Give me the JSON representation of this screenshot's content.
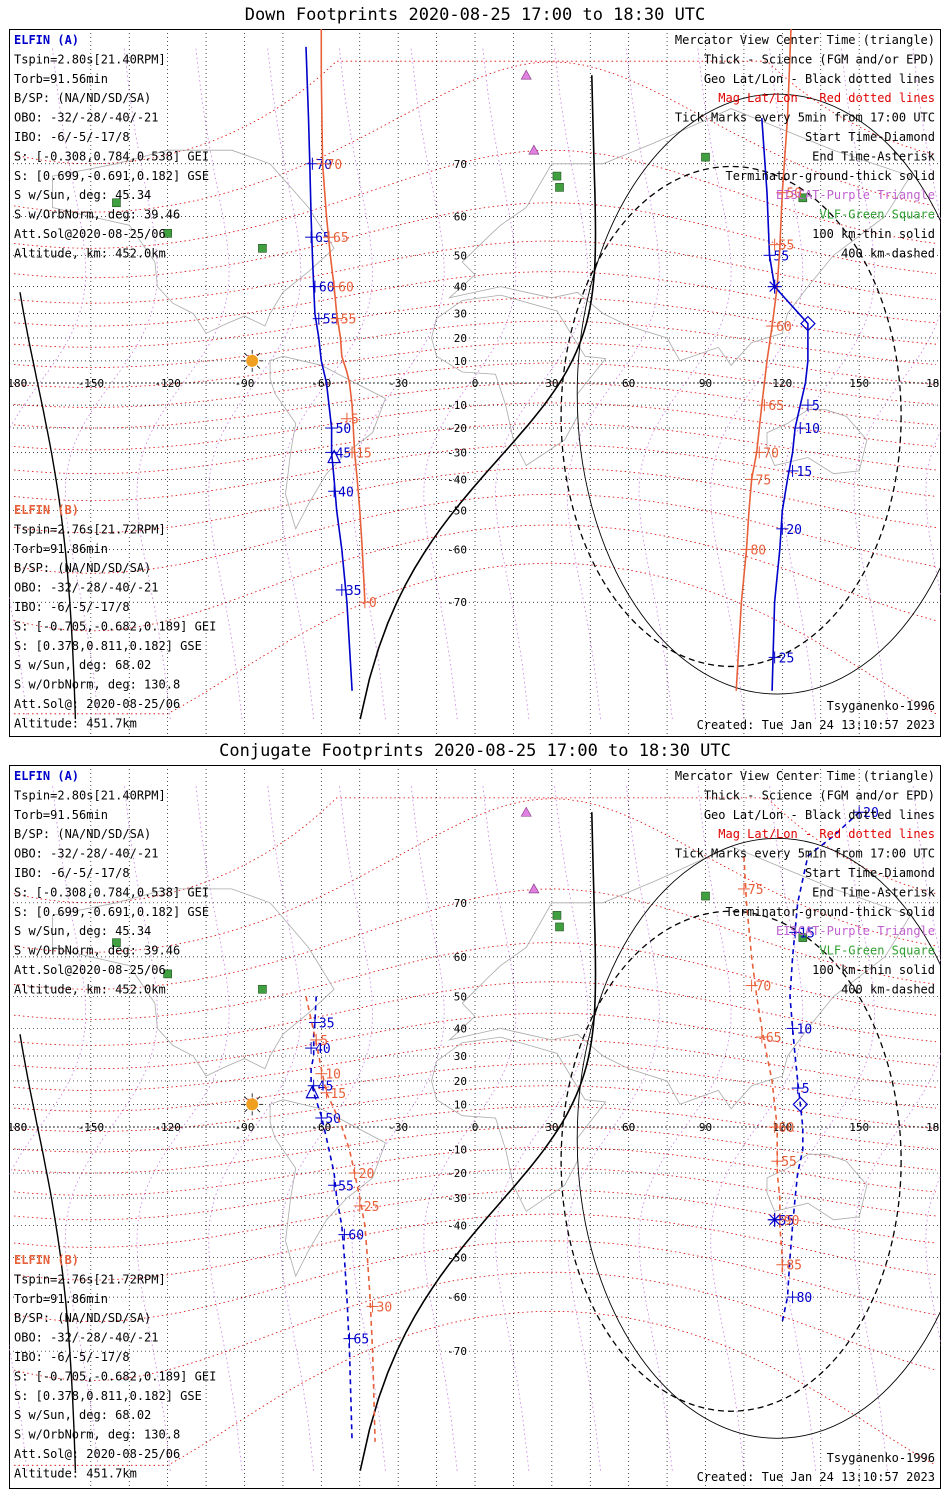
{
  "chart_data": [
    {
      "type": "line",
      "title": "Down Footprints 2020-08-25 17:00 to 18:30 UTC",
      "projection": "mercator",
      "x_ticks": [
        "-180",
        "-150",
        "-120",
        "-90",
        "-60",
        "-30",
        "0",
        "30",
        "60",
        "90",
        "120",
        "150",
        "180"
      ],
      "y_ticks": [
        "70",
        "60",
        "50",
        "40",
        "30",
        "20",
        "10",
        "-10",
        "-20",
        "-30",
        "-40",
        "-50",
        "-60",
        "-70"
      ],
      "left_info_a": [
        "ELFIN (A)",
        "Tspin=2.80s[21.40RPM]",
        "Torb=91.56min",
        "B/SP: (NA/ND/SD/SA)",
        "OBO: -32/-28/-40/-21",
        "IBO: -6/-5/-17/8",
        "S: [-0.308,0.784,0.538] GEI",
        "S: [0.699,-0.691,0.182] GSE",
        "S w/Sun, deg: 45.34",
        "S w/OrbNorm, deg: 39.46",
        "Att.Sol@2020-08-25/06",
        "Altitude, km: 452.0km"
      ],
      "left_info_b": [
        "ELFIN (B)",
        "Tspin=2.76s[21.72RPM]",
        "Torb=91.86min",
        "B/SP: (NA/ND/SD/SA)",
        "OBO: -32/-28/-40/-21",
        "IBO: -6/-5/-17/8",
        "S: [-0.705,-0.682,0.189] GEI",
        "S: [0.378,0.811,0.182] GSE",
        "S w/Sun, deg: 68.02",
        "S w/OrbNorm, deg: 130.8",
        "Att.Sol@: 2020-08-25/06",
        "Altitude: 451.7km"
      ],
      "legend": [
        "Mercator View Center Time (triangle)",
        "Thick - Science (FGM and/or EPD)",
        "Geo Lat/Lon - Black dotted lines",
        "Mag Lat/Lon - Red dotted lines",
        "Tick Marks every 5min from 17:00 UTC",
        "Start Time-Diamond",
        "End Time-Asterisk",
        "Terminator-ground-thick solid",
        "EISCAT-Purple Triangle",
        "VLF-Green Square",
        "100 km-thin solid",
        "400 km-dashed"
      ],
      "model": "Tsyganenko-1996",
      "created": "Created: Tue Jan 24 13:10:57 2023",
      "series": [
        {
          "name": "ELFIN (A)",
          "color": "#0000cc",
          "dash": false,
          "points": [
            [
              -66,
              82
            ],
            [
              -65,
              76
            ],
            [
              -64.5,
              70
            ],
            [
              -64,
              60
            ],
            [
              -63.5,
              50
            ],
            [
              -63,
              40
            ],
            [
              -62.5,
              30
            ],
            [
              -61,
              20
            ],
            [
              -60,
              10
            ],
            [
              -58,
              0
            ],
            [
              -57,
              -10
            ],
            [
              -56,
              -20
            ],
            [
              -56,
              -30
            ],
            [
              -55,
              -40
            ],
            [
              -54,
              -50
            ],
            [
              -52,
              -60
            ],
            [
              -50,
              -70
            ],
            [
              -48,
              -80
            ]
          ],
          "ticks": [
            [
              -63.5,
              70,
              "70"
            ],
            [
              -64,
              55,
              "65"
            ],
            [
              -62.5,
              40,
              "60"
            ],
            [
              -61,
              28,
              "55"
            ],
            [
              -56,
              -20,
              "50"
            ],
            [
              -56,
              -30,
              "45"
            ],
            [
              -55,
              -44,
              "40"
            ],
            [
              -52,
              -68,
              "35"
            ]
          ],
          "center": [
            -55,
            -32
          ]
        },
        {
          "name": "ELFIN (B)",
          "color": "#e8603a",
          "dash": false,
          "points": [
            [
              -60,
              85
            ],
            [
              -60,
              80
            ],
            [
              -59.5,
              70
            ],
            [
              -58,
              60
            ],
            [
              -56.5,
              50
            ],
            [
              -55,
              40
            ],
            [
              -54,
              30
            ],
            [
              -52.5,
              20
            ],
            [
              -52,
              12
            ],
            [
              -50,
              5
            ],
            [
              -49,
              0
            ],
            [
              -48,
              -10
            ],
            [
              -47.5,
              -20
            ],
            [
              -47,
              -30
            ],
            [
              -46,
              -40
            ],
            [
              -45,
              -50
            ],
            [
              -44,
              -60
            ],
            [
              -43,
              -70
            ]
          ],
          "ticks": [
            [
              -59.5,
              70,
              "70"
            ],
            [
              -57,
              55,
              "65"
            ],
            [
              -55,
              40,
              "60"
            ],
            [
              -54,
              28,
              "55"
            ],
            [
              -50,
              -16,
              "5"
            ],
            [
              -48,
              -30,
              "15"
            ],
            [
              -43,
              -70,
              "0"
            ]
          ],
          "center": null
        },
        {
          "name": "ELFIN (A)",
          "color": "#0000cc",
          "dash": false,
          "points": [
            [
              112,
              76
            ],
            [
              114,
              65
            ],
            [
              115,
              50
            ],
            [
              117,
              40
            ],
            [
              130,
              26
            ],
            [
              130,
              10
            ],
            [
              129,
              0
            ],
            [
              127,
              -10
            ],
            [
              125,
              -20
            ],
            [
              124,
              -30
            ],
            [
              122,
              -40
            ],
            [
              120,
              -50
            ],
            [
              119,
              -60
            ],
            [
              117,
              -70
            ],
            [
              116,
              -80
            ]
          ],
          "ticks": [
            [
              115,
              50,
              "55"
            ],
            [
              130,
              -10,
              "5"
            ],
            [
              127,
              -20,
              "10"
            ],
            [
              124,
              -37,
              "15"
            ],
            [
              120,
              -55,
              "20"
            ],
            [
              117,
              -77,
              "25"
            ]
          ],
          "center": null
        },
        {
          "name": "ELFIN (B)",
          "color": "#e8603a",
          "dash": false,
          "points": [
            [
              124,
              85
            ],
            [
              122,
              76
            ],
            [
              120,
              65
            ],
            [
              119,
              52
            ],
            [
              118,
              40
            ],
            [
              116,
              25
            ],
            [
              114,
              10
            ],
            [
              113,
              0
            ],
            [
              112,
              -10
            ],
            [
              111,
              -20
            ],
            [
              110,
              -30
            ],
            [
              108,
              -40
            ],
            [
              107,
              -50
            ],
            [
              106,
              -60
            ],
            [
              104,
              -70
            ],
            [
              102,
              -80
            ]
          ],
          "ticks": [
            [
              120,
              65,
              "50"
            ],
            [
              117,
              53,
              "55"
            ],
            [
              116,
              25,
              "60"
            ],
            [
              113,
              -10,
              "65"
            ],
            [
              111,
              -30,
              "70"
            ],
            [
              108,
              -40,
              "75"
            ],
            [
              106,
              -60,
              "80"
            ]
          ],
          "center": null
        }
      ]
    },
    {
      "type": "line",
      "title": "Conjugate Footprints 2020-08-25 17:00 to 18:30 UTC",
      "projection": "mercator",
      "x_ticks": [
        "-180",
        "-150",
        "-120",
        "-90",
        "-60",
        "-30",
        "0",
        "30",
        "60",
        "90",
        "120",
        "150",
        "180"
      ],
      "y_ticks": [
        "70",
        "60",
        "50",
        "40",
        "30",
        "20",
        "10",
        "-10",
        "-20",
        "-30",
        "-40",
        "-50",
        "-60",
        "-70"
      ],
      "left_info_a": [
        "ELFIN (A)",
        "Tspin=2.80s[21.40RPM]",
        "Torb=91.56min",
        "B/SP: (NA/ND/SD/SA)",
        "OBO: -32/-28/-40/-21",
        "IBO: -6/-5/-17/8",
        "S: [-0.308,0.784,0.538] GEI",
        "S: [0.699,-0.691,0.182] GSE",
        "S w/Sun, deg: 45.34",
        "S w/OrbNorm, deg: 39.46",
        "Att.Sol@2020-08-25/06",
        "Altitude, km: 452.0km"
      ],
      "left_info_b": [
        "ELFIN (B)",
        "Tspin=2.76s[21.72RPM]",
        "Torb=91.86min",
        "B/SP: (NA/ND/SD/SA)",
        "OBO: -32/-28/-40/-21",
        "IBO: -6/-5/-17/8",
        "S: [-0.705,-0.682,0.189] GEI",
        "S: [0.378,0.811,0.182] GSE",
        "S w/Sun, deg: 68.02",
        "S w/OrbNorm, deg: 130.8",
        "Att.Sol@: 2020-08-25/06",
        "Altitude: 451.7km"
      ],
      "legend": [
        "Mercator View Center Time (triangle)",
        "Thick - Science (FGM and/or EPD)",
        "Geo Lat/Lon - Black dotted lines",
        "Mag Lat/Lon - Red dotted lines",
        "Tick Marks every 5min from 17:00 UTC",
        "Start Time-Diamond",
        "End Time-Asterisk",
        "Terminator-ground-thick solid",
        "EISCAT-Purple Triangle",
        "VLF-Green Square",
        "100 km-thin solid",
        "400 km-dashed"
      ],
      "model": "Tsyganenko-1996",
      "created": "Created: Tue Jan 24 13:10:57 2023",
      "series": [
        {
          "name": "ELFIN (A)",
          "color": "#0000cc",
          "dash": true,
          "points": [
            [
              -62,
              50
            ],
            [
              -62.5,
              42
            ],
            [
              -63,
              38
            ],
            [
              -63,
              30
            ],
            [
              -64,
              25
            ],
            [
              -64,
              20
            ],
            [
              -63,
              15
            ],
            [
              -60,
              5
            ],
            [
              -58,
              -5
            ],
            [
              -57,
              -10
            ],
            [
              -55,
              -20
            ],
            [
              -54,
              -30
            ],
            [
              -52,
              -40
            ],
            [
              -51,
              -50
            ],
            [
              -50,
              -60
            ],
            [
              -49,
              -70
            ],
            [
              -48,
              -80
            ]
          ],
          "ticks": [
            [
              -62.5,
              42,
              "35"
            ],
            [
              -64,
              33,
              "40"
            ],
            [
              -63,
              18,
              "45"
            ],
            [
              -60,
              4,
              "50"
            ],
            [
              -55,
              -25,
              "55"
            ],
            [
              -51,
              -43,
              "60"
            ],
            [
              -49,
              -68,
              "65"
            ]
          ],
          "center": [
            -63.5,
            15
          ]
        },
        {
          "name": "ELFIN (B)",
          "color": "#e8603a",
          "dash": true,
          "points": [
            [
              -66,
              50
            ],
            [
              -62,
              35
            ],
            [
              -60,
              25
            ],
            [
              -58,
              15
            ],
            [
              -55,
              8
            ],
            [
              -52,
              0
            ],
            [
              -49,
              -10
            ],
            [
              -47,
              -20
            ],
            [
              -45,
              -30
            ],
            [
              -43,
              -40
            ],
            [
              -42,
              -50
            ],
            [
              -41,
              -60
            ],
            [
              -40,
              -70
            ],
            [
              -39,
              -80
            ]
          ],
          "ticks": [
            [
              -62,
              36,
              "5"
            ],
            [
              -60,
              23,
              "10"
            ],
            [
              -58,
              15,
              "15"
            ],
            [
              -47,
              -20,
              "20"
            ],
            [
              -45,
              -33,
              "25"
            ],
            [
              -40,
              -62,
              "30"
            ]
          ],
          "center": null
        },
        {
          "name": "ELFIN (A)",
          "color": "#0000cc",
          "dash": true,
          "points": [
            [
              150,
              80
            ],
            [
              140,
              78
            ],
            [
              130,
              76
            ],
            [
              126,
              70
            ],
            [
              124,
              60
            ],
            [
              123,
              50
            ],
            [
              124,
              40
            ],
            [
              125,
              30
            ],
            [
              126,
              20
            ],
            [
              127,
              10
            ],
            [
              128,
              0
            ],
            [
              128,
              -10
            ],
            [
              126,
              -20
            ],
            [
              125,
              -30
            ],
            [
              124,
              -40
            ],
            [
              123,
              -50
            ],
            [
              122,
              -60
            ],
            [
              120,
              -65
            ]
          ],
          "ticks": [
            [
              150,
              80,
              "20"
            ],
            [
              125,
              65,
              "15"
            ],
            [
              124,
              40,
              "10"
            ],
            [
              126,
              17,
              "5"
            ],
            [
              117,
              -38,
              "55"
            ],
            [
              124,
              -60,
              "80"
            ]
          ],
          "center": null
        },
        {
          "name": "ELFIN (B)",
          "color": "#e8603a",
          "dash": true,
          "points": [
            [
              105,
              76
            ],
            [
              106,
              70
            ],
            [
              108,
              60
            ],
            [
              110,
              50
            ],
            [
              112,
              40
            ],
            [
              114,
              30
            ],
            [
              116,
              20
            ],
            [
              117,
              10
            ],
            [
              118,
              0
            ],
            [
              118,
              -10
            ],
            [
              118,
              -20
            ],
            [
              119,
              -30
            ],
            [
              119,
              -40
            ],
            [
              120,
              -50
            ],
            [
              120,
              -55
            ]
          ],
          "ticks": [
            [
              105,
              72,
              "75"
            ],
            [
              108,
              53,
              "70"
            ],
            [
              112,
              37,
              "65"
            ],
            [
              117,
              0,
              "60"
            ],
            [
              118,
              -15,
              "55"
            ],
            [
              119,
              -38,
              "90"
            ],
            [
              120,
              -52,
              "85"
            ]
          ],
          "center": null
        }
      ]
    }
  ]
}
